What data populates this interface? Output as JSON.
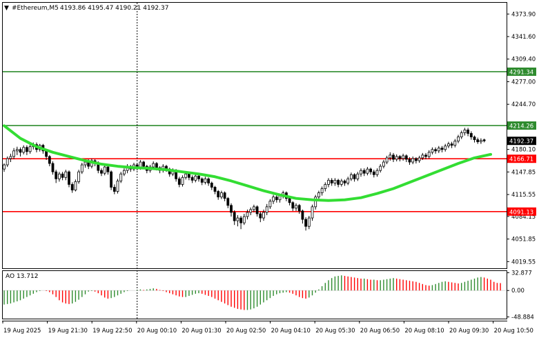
{
  "header": {
    "symbol_timeframe": "#Ethereum,M5",
    "ohlc": "4193.86 4195.47 4190.21 4192.37"
  },
  "ao_header": {
    "label": "AO 13.712"
  },
  "chart_data": [
    {
      "type": "candlestick",
      "y_axis": {
        "ylim": [
          4010.0,
          4390.0
        ],
        "ticks": [
          "4373.90",
          "4341.60",
          "4309.40",
          "4277.00",
          "4244.70",
          "4212.45",
          "4180.10",
          "4147.85",
          "4115.55",
          "4084.15",
          "4051.85",
          "4019.55"
        ]
      },
      "x_axis": {
        "ticks": [
          "19 Aug 2025",
          "19 Aug 21:30",
          "19 Aug 22:50",
          "20 Aug 00:10",
          "20 Aug 01:30",
          "20 Aug 02:50",
          "20 Aug 04:10",
          "20 Aug 05:30",
          "20 Aug 06:50",
          "20 Aug 08:10",
          "20 Aug 09:30",
          "20 Aug 10:50"
        ]
      },
      "current_price": {
        "label": "4192.37",
        "value": 4192.37,
        "color": "#000000"
      },
      "horizontal_levels": [
        {
          "label": "4291.34",
          "value": 4291.34,
          "color": "#2e8b2e"
        },
        {
          "label": "4214.26",
          "value": 4214.26,
          "color": "#2e8b2e"
        },
        {
          "label": "4166.71",
          "value": 4166.71,
          "color": "#ff0000"
        },
        {
          "label": "4091.13",
          "value": 4091.13,
          "color": "#ff0000"
        }
      ],
      "vertical_marker_index": 41,
      "moving_average": {
        "color": "#33dd33",
        "points": [
          [
            0,
            4214
          ],
          [
            5,
            4196
          ],
          [
            10,
            4184
          ],
          [
            15,
            4176
          ],
          [
            20,
            4170
          ],
          [
            25,
            4164
          ],
          [
            30,
            4159
          ],
          [
            35,
            4156
          ],
          [
            40,
            4154
          ],
          [
            45,
            4153
          ],
          [
            50,
            4151
          ],
          [
            55,
            4148
          ],
          [
            60,
            4145
          ],
          [
            65,
            4141
          ],
          [
            70,
            4135
          ],
          [
            75,
            4128
          ],
          [
            80,
            4121
          ],
          [
            85,
            4115
          ],
          [
            90,
            4110
          ],
          [
            95,
            4108
          ],
          [
            100,
            4107
          ],
          [
            105,
            4108
          ],
          [
            110,
            4111
          ],
          [
            115,
            4117
          ],
          [
            120,
            4124
          ],
          [
            125,
            4133
          ],
          [
            130,
            4142
          ],
          [
            135,
            4151
          ],
          [
            140,
            4160
          ],
          [
            145,
            4168
          ],
          [
            150,
            4173
          ]
        ]
      },
      "ohlc_data": [
        [
          4152.0,
          4158.0,
          4148.0,
          4160.0
        ],
        [
          4158.0,
          4167.0,
          4155.0,
          4170.0
        ],
        [
          4167.0,
          4170.0,
          4162.0,
          4174.0
        ],
        [
          4170.0,
          4178.0,
          4166.0,
          4182.0
        ],
        [
          4178.0,
          4180.0,
          4172.0,
          4184.0
        ],
        [
          4180.0,
          4176.0,
          4170.0,
          4183.0
        ],
        [
          4176.0,
          4183.0,
          4173.0,
          4186.0
        ],
        [
          4183.0,
          4177.0,
          4172.0,
          4186.0
        ],
        [
          4177.0,
          4184.0,
          4174.0,
          4187.0
        ],
        [
          4184.0,
          4187.0,
          4180.0,
          4190.0
        ],
        [
          4187.0,
          4180.0,
          4176.0,
          4190.0
        ],
        [
          4180.0,
          4186.0,
          4177.0,
          4188.0
        ],
        [
          4186.0,
          4178.0,
          4174.0,
          4188.0
        ],
        [
          4178.0,
          4170.0,
          4165.0,
          4180.0
        ],
        [
          4170.0,
          4160.0,
          4156.0,
          4172.0
        ],
        [
          4160.0,
          4148.0,
          4144.0,
          4163.0
        ],
        [
          4148.0,
          4138.0,
          4132.0,
          4151.0
        ],
        [
          4138.0,
          4145.0,
          4134.0,
          4148.0
        ],
        [
          4145.0,
          4140.0,
          4136.0,
          4148.0
        ],
        [
          4140.0,
          4148.0,
          4136.0,
          4151.0
        ],
        [
          4148.0,
          4130.0,
          4126.0,
          4150.0
        ],
        [
          4130.0,
          4122.0,
          4118.0,
          4133.0
        ],
        [
          4122.0,
          4134.0,
          4120.0,
          4137.0
        ],
        [
          4134.0,
          4148.0,
          4131.0,
          4151.0
        ],
        [
          4148.0,
          4158.0,
          4145.0,
          4161.0
        ],
        [
          4158.0,
          4162.0,
          4154.0,
          4166.0
        ],
        [
          4162.0,
          4156.0,
          4152.0,
          4166.0
        ],
        [
          4156.0,
          4164.0,
          4153.0,
          4167.0
        ],
        [
          4164.0,
          4160.0,
          4156.0,
          4166.0
        ],
        [
          4160.0,
          4150.0,
          4146.0,
          4163.0
        ],
        [
          4150.0,
          4146.0,
          4142.0,
          4153.0
        ],
        [
          4146.0,
          4155.0,
          4143.0,
          4158.0
        ],
        [
          4155.0,
          4148.0,
          4144.0,
          4157.0
        ],
        [
          4148.0,
          4126.0,
          4122.0,
          4150.0
        ],
        [
          4126.0,
          4120.0,
          4116.0,
          4130.0
        ],
        [
          4120.0,
          4135.0,
          4117.0,
          4138.0
        ],
        [
          4135.0,
          4145.0,
          4132.0,
          4148.0
        ],
        [
          4145.0,
          4150.0,
          4142.0,
          4153.0
        ],
        [
          4150.0,
          4156.0,
          4146.0,
          4159.0
        ],
        [
          4156.0,
          4152.0,
          4148.0,
          4158.0
        ],
        [
          4152.0,
          4158.0,
          4149.0,
          4161.0
        ],
        [
          4158.0,
          4154.0,
          4150.0,
          4160.0
        ],
        [
          4154.0,
          4162.0,
          4151.0,
          4165.0
        ],
        [
          4162.0,
          4156.0,
          4152.0,
          4164.0
        ],
        [
          4156.0,
          4150.0,
          4146.0,
          4158.0
        ],
        [
          4150.0,
          4155.0,
          4147.0,
          4158.0
        ],
        [
          4155.0,
          4160.0,
          4152.0,
          4163.0
        ],
        [
          4160.0,
          4154.0,
          4150.0,
          4162.0
        ],
        [
          4154.0,
          4150.0,
          4146.0,
          4156.0
        ],
        [
          4150.0,
          4156.0,
          4147.0,
          4159.0
        ],
        [
          4156.0,
          4152.0,
          4148.0,
          4158.0
        ],
        [
          4152.0,
          4145.0,
          4141.0,
          4154.0
        ],
        [
          4145.0,
          4150.0,
          4142.0,
          4153.0
        ],
        [
          4150.0,
          4138.0,
          4134.0,
          4152.0
        ],
        [
          4138.0,
          4130.0,
          4126.0,
          4141.0
        ],
        [
          4130.0,
          4140.0,
          4127.0,
          4143.0
        ],
        [
          4140.0,
          4145.0,
          4137.0,
          4148.0
        ],
        [
          4145.0,
          4140.0,
          4136.0,
          4147.0
        ],
        [
          4140.0,
          4136.0,
          4132.0,
          4143.0
        ],
        [
          4136.0,
          4142.0,
          4133.0,
          4145.0
        ],
        [
          4142.0,
          4138.0,
          4134.0,
          4144.0
        ],
        [
          4138.0,
          4133.0,
          4129.0,
          4140.0
        ],
        [
          4133.0,
          4138.0,
          4130.0,
          4141.0
        ],
        [
          4138.0,
          4132.0,
          4128.0,
          4140.0
        ],
        [
          4132.0,
          4126.0,
          4122.0,
          4134.0
        ],
        [
          4126.0,
          4120.0,
          4116.0,
          4128.0
        ],
        [
          4120.0,
          4112.0,
          4108.0,
          4122.0
        ],
        [
          4112.0,
          4118.0,
          4109.0,
          4121.0
        ],
        [
          4118.0,
          4110.0,
          4106.0,
          4120.0
        ],
        [
          4110.0,
          4100.0,
          4096.0,
          4112.0
        ],
        [
          4100.0,
          4090.0,
          4084.0,
          4103.0
        ],
        [
          4090.0,
          4078.0,
          4072.0,
          4093.0
        ],
        [
          4078.0,
          4082.0,
          4070.0,
          4086.0
        ],
        [
          4082.0,
          4075.0,
          4066.0,
          4085.0
        ],
        [
          4075.0,
          4084.0,
          4072.0,
          4088.0
        ],
        [
          4084.0,
          4090.0,
          4080.0,
          4094.0
        ],
        [
          4090.0,
          4094.0,
          4086.0,
          4097.0
        ],
        [
          4094.0,
          4098.0,
          4090.0,
          4101.0
        ],
        [
          4098.0,
          4088.0,
          4084.0,
          4100.0
        ],
        [
          4088.0,
          4082.0,
          4076.0,
          4091.0
        ],
        [
          4082.0,
          4090.0,
          4078.0,
          4094.0
        ],
        [
          4090.0,
          4098.0,
          4086.0,
          4102.0
        ],
        [
          4098.0,
          4106.0,
          4095.0,
          4109.0
        ],
        [
          4106.0,
          4112.0,
          4102.0,
          4115.0
        ],
        [
          4112.0,
          4108.0,
          4104.0,
          4115.0
        ],
        [
          4108.0,
          4114.0,
          4104.0,
          4117.0
        ],
        [
          4114.0,
          4118.0,
          4110.0,
          4121.0
        ],
        [
          4118.0,
          4110.0,
          4106.0,
          4120.0
        ],
        [
          4110.0,
          4104.0,
          4100.0,
          4113.0
        ],
        [
          4104.0,
          4096.0,
          4092.0,
          4106.0
        ],
        [
          4096.0,
          4100.0,
          4092.0,
          4103.0
        ],
        [
          4100.0,
          4092.0,
          4088.0,
          4102.0
        ],
        [
          4092.0,
          4080.0,
          4074.0,
          4094.0
        ],
        [
          4080.0,
          4070.0,
          4064.0,
          4083.0
        ],
        [
          4070.0,
          4082.0,
          4066.0,
          4085.0
        ],
        [
          4082.0,
          4098.0,
          4078.0,
          4101.0
        ],
        [
          4098.0,
          4112.0,
          4094.0,
          4115.0
        ],
        [
          4112.0,
          4118.0,
          4108.0,
          4121.0
        ],
        [
          4118.0,
          4124.0,
          4114.0,
          4127.0
        ],
        [
          4124.0,
          4130.0,
          4120.0,
          4133.0
        ],
        [
          4130.0,
          4136.0,
          4126.0,
          4139.0
        ],
        [
          4136.0,
          4132.0,
          4128.0,
          4139.0
        ],
        [
          4132.0,
          4136.0,
          4128.0,
          4139.0
        ],
        [
          4136.0,
          4130.0,
          4126.0,
          4138.0
        ],
        [
          4130.0,
          4135.0,
          4127.0,
          4138.0
        ],
        [
          4135.0,
          4132.0,
          4128.0,
          4137.0
        ],
        [
          4132.0,
          4138.0,
          4129.0,
          4141.0
        ],
        [
          4138.0,
          4144.0,
          4135.0,
          4147.0
        ],
        [
          4144.0,
          4138.0,
          4134.0,
          4146.0
        ],
        [
          4138.0,
          4145.0,
          4135.0,
          4148.0
        ],
        [
          4145.0,
          4150.0,
          4141.0,
          4153.0
        ],
        [
          4150.0,
          4146.0,
          4142.0,
          4153.0
        ],
        [
          4146.0,
          4152.0,
          4143.0,
          4155.0
        ],
        [
          4152.0,
          4148.0,
          4144.0,
          4154.0
        ],
        [
          4148.0,
          4144.0,
          4140.0,
          4151.0
        ],
        [
          4144.0,
          4150.0,
          4141.0,
          4153.0
        ],
        [
          4150.0,
          4156.0,
          4147.0,
          4159.0
        ],
        [
          4156.0,
          4162.0,
          4153.0,
          4165.0
        ],
        [
          4162.0,
          4168.0,
          4159.0,
          4171.0
        ],
        [
          4168.0,
          4172.0,
          4164.0,
          4176.0
        ],
        [
          4172.0,
          4166.0,
          4162.0,
          4175.0
        ],
        [
          4166.0,
          4170.0,
          4163.0,
          4173.0
        ],
        [
          4170.0,
          4167.0,
          4163.0,
          4172.0
        ],
        [
          4167.0,
          4171.0,
          4164.0,
          4174.0
        ],
        [
          4171.0,
          4166.0,
          4162.0,
          4173.0
        ],
        [
          4166.0,
          4162.0,
          4158.0,
          4169.0
        ],
        [
          4162.0,
          4167.0,
          4159.0,
          4170.0
        ],
        [
          4167.0,
          4164.0,
          4160.0,
          4169.0
        ],
        [
          4164.0,
          4168.0,
          4161.0,
          4171.0
        ],
        [
          4168.0,
          4172.0,
          4165.0,
          4175.0
        ],
        [
          4172.0,
          4170.0,
          4166.0,
          4175.0
        ],
        [
          4170.0,
          4176.0,
          4167.0,
          4179.0
        ],
        [
          4176.0,
          4180.0,
          4173.0,
          4183.0
        ],
        [
          4180.0,
          4178.0,
          4174.0,
          4183.0
        ],
        [
          4178.0,
          4182.0,
          4175.0,
          4185.0
        ],
        [
          4182.0,
          4180.0,
          4176.0,
          4185.0
        ],
        [
          4180.0,
          4185.0,
          4177.0,
          4188.0
        ],
        [
          4185.0,
          4188.0,
          4182.0,
          4191.0
        ],
        [
          4188.0,
          4186.0,
          4182.0,
          4191.0
        ],
        [
          4186.0,
          4192.0,
          4183.0,
          4195.0
        ],
        [
          4192.0,
          4198.0,
          4189.0,
          4201.0
        ],
        [
          4198.0,
          4204.0,
          4195.0,
          4207.0
        ],
        [
          4204.0,
          4208.0,
          4200.0,
          4211.0
        ],
        [
          4208.0,
          4203.0,
          4199.0,
          4211.0
        ],
        [
          4203.0,
          4198.0,
          4194.0,
          4206.0
        ],
        [
          4198.0,
          4194.0,
          4190.0,
          4200.0
        ],
        [
          4194.0,
          4191.0,
          4188.0,
          4197.0
        ],
        [
          4191.0,
          4193.0,
          4188.0,
          4196.0
        ],
        [
          4193.86,
          4192.37,
          4190.21,
          4195.47
        ]
      ],
      "bull_color": "#000000",
      "bear_color": "#000000"
    },
    {
      "type": "bar",
      "name": "AO",
      "y_axis": {
        "ylim": [
          -52.0,
          36.0
        ],
        "ticks": [
          "32.877",
          "0.00",
          "-48.884"
        ]
      },
      "positive_color": "#2e8b2e",
      "negative_color": "#ff0000",
      "values": [
        -26.0,
        -25.0,
        -24.0,
        -22.0,
        -20.0,
        -18.0,
        -15.0,
        -12.0,
        -9.0,
        -6.0,
        -3.0,
        -1.0,
        0.0,
        -1.0,
        -3.0,
        -7.0,
        -12.0,
        -18.0,
        -22.0,
        -24.0,
        -25.0,
        -24.0,
        -21.0,
        -17.0,
        -12.0,
        -7.0,
        -2.0,
        -1.0,
        -2.0,
        -5.0,
        -9.0,
        -13.0,
        -15.0,
        -14.0,
        -12.0,
        -9.0,
        -6.0,
        -3.0,
        -1.0,
        0.0,
        0.0,
        1.0,
        2.0,
        1.0,
        2.0,
        3.0,
        4.0,
        3.0,
        1.0,
        -1.0,
        -3.0,
        -5.0,
        -7.0,
        -9.0,
        -11.0,
        -12.0,
        -12.0,
        -10.0,
        -8.0,
        -6.0,
        -5.0,
        -6.0,
        -8.0,
        -10.0,
        -12.0,
        -15.0,
        -18.0,
        -21.0,
        -24.0,
        -27.0,
        -30.0,
        -32.0,
        -34.0,
        -35.0,
        -36.0,
        -36.0,
        -35.0,
        -33.0,
        -30.0,
        -26.0,
        -22.0,
        -18.0,
        -14.0,
        -10.0,
        -7.0,
        -5.0,
        -4.0,
        -3.0,
        -4.0,
        -6.0,
        -9.0,
        -12.0,
        -14.0,
        -15.0,
        -13.0,
        -9.0,
        -4.0,
        2.0,
        8.0,
        14.0,
        19.0,
        23.0,
        26.0,
        27.0,
        28.0,
        27.0,
        26.0,
        25.0,
        24.0,
        23.0,
        22.0,
        22.0,
        21.0,
        20.0,
        20.0,
        19.0,
        19.0,
        20.0,
        21.0,
        22.0,
        23.0,
        22.0,
        21.0,
        20.0,
        19.0,
        18.0,
        17.0,
        16.0,
        14.0,
        12.0,
        10.0,
        9.0,
        10.0,
        12.0,
        14.0,
        16.0,
        17.0,
        16.0,
        15.0,
        14.0,
        13.0,
        14.0,
        16.0,
        18.0,
        20.0,
        22.0,
        24.0,
        25.0,
        24.0,
        22.0,
        20.0,
        16.0,
        14.0,
        13.7
      ]
    }
  ]
}
